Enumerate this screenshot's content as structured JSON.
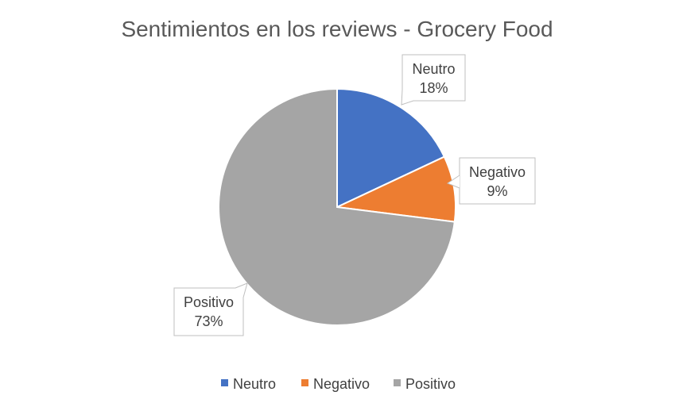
{
  "chart_data": {
    "type": "pie",
    "title": "Sentimientos en los reviews - Grocery Food",
    "categories": [
      "Neutro",
      "Negativo",
      "Positivo"
    ],
    "values": [
      18,
      9,
      73
    ],
    "labels": [
      "18%",
      "9%",
      "73%"
    ],
    "colors": [
      "#4472c4",
      "#ed7d31",
      "#a5a5a5"
    ],
    "legend_position": "bottom",
    "start_angle_deg": 0,
    "direction": "clockwise"
  }
}
